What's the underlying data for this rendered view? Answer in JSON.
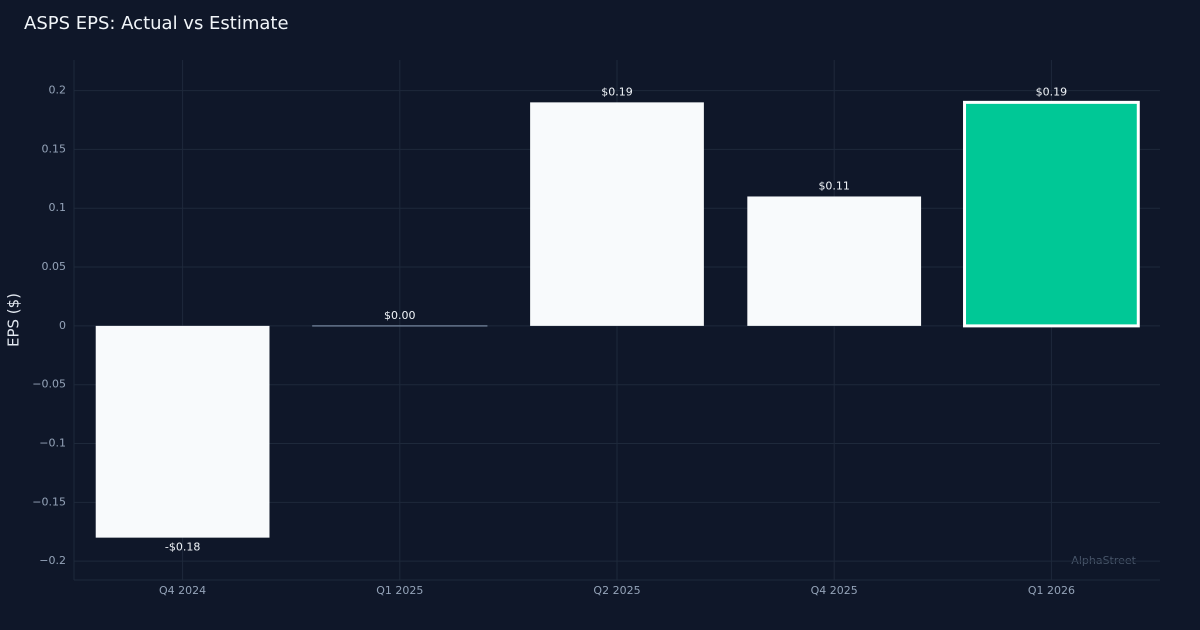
{
  "chart_data": {
    "type": "bar",
    "title": "ASPS EPS: Actual vs Estimate",
    "y_label": "EPS ($)",
    "watermark": "AlphaStreet",
    "categories": [
      "Q4 2024",
      "Q1 2025",
      "Q2 2025",
      "Q4 2025",
      "Q1 2026"
    ],
    "values": [
      -0.18,
      0.0,
      0.19,
      0.11,
      0.19
    ],
    "value_labels": [
      "-$0.18",
      "$0.00",
      "$0.19",
      "$0.11",
      "$0.19"
    ],
    "colors": [
      "#f8fafc",
      "#f8fafc",
      "#f8fafc",
      "#f8fafc",
      "#00c896"
    ],
    "edge_colors": [
      null,
      "#64748b",
      null,
      null,
      "#ffffff"
    ],
    "ylim": [
      -0.216,
      0.226
    ],
    "yticks": [
      {
        "value": -0.2,
        "label": "−0.2"
      },
      {
        "value": -0.15,
        "label": "−0.15"
      },
      {
        "value": -0.1,
        "label": "−0.1"
      },
      {
        "value": -0.05,
        "label": "−0.05"
      },
      0,
      0.05,
      0.1,
      0.15,
      0.2
    ],
    "grid": true
  }
}
